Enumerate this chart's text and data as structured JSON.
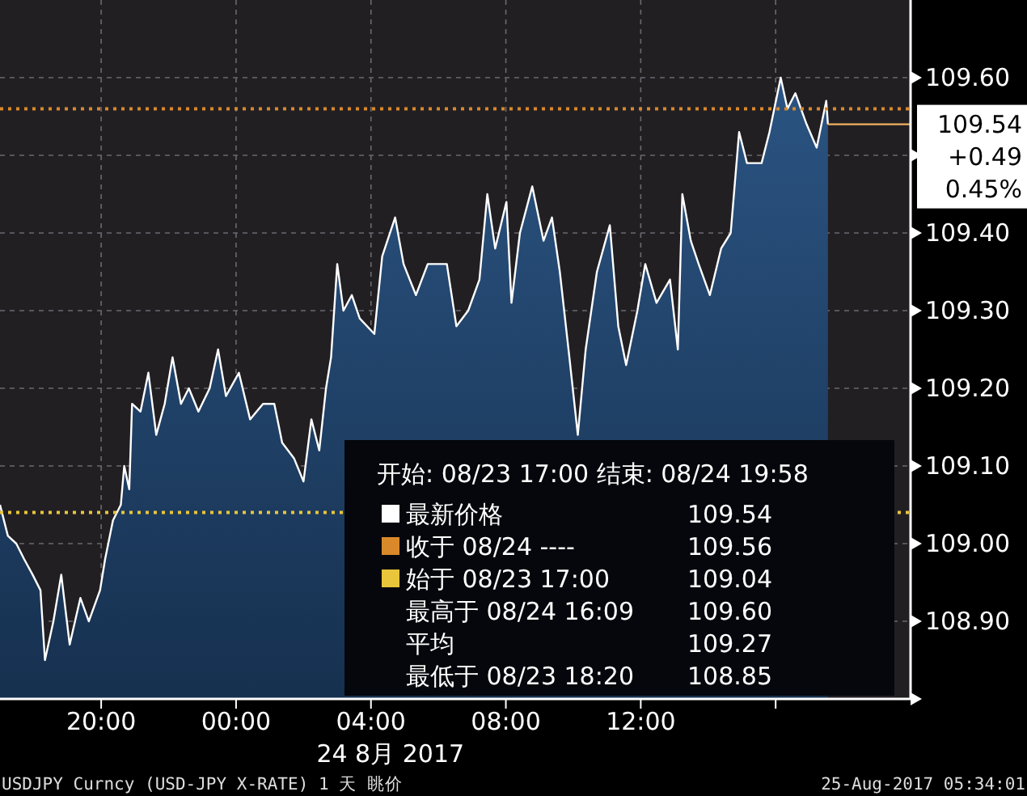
{
  "chart_data": {
    "type": "area",
    "xlabel": "24 8月 2017",
    "x": [
      "2017-08-23T17:00",
      "2017-08-23T17:14",
      "2017-08-23T17:29",
      "2017-08-23T17:43",
      "2017-08-23T17:58",
      "2017-08-23T18:12",
      "2017-08-23T18:20",
      "2017-08-23T18:35",
      "2017-08-23T18:49",
      "2017-08-23T19:04",
      "2017-08-23T19:23",
      "2017-08-23T19:38",
      "2017-08-23T19:58",
      "2017-08-23T20:07",
      "2017-08-23T20:21",
      "2017-08-23T20:35",
      "2017-08-23T20:41",
      "2017-08-23T20:50",
      "2017-08-23T20:55",
      "2017-08-23T21:10",
      "2017-08-23T21:24",
      "2017-08-23T21:38",
      "2017-08-23T21:53",
      "2017-08-23T22:07",
      "2017-08-23T22:22",
      "2017-08-23T22:36",
      "2017-08-23T22:53",
      "2017-08-23T23:13",
      "2017-08-23T23:28",
      "2017-08-23T23:42",
      "2017-08-24T00:05",
      "2017-08-24T00:25",
      "2017-08-24T00:48",
      "2017-08-24T01:08",
      "2017-08-24T01:22",
      "2017-08-24T01:43",
      "2017-08-24T02:00",
      "2017-08-24T02:14",
      "2017-08-24T02:28",
      "2017-08-24T02:40",
      "2017-08-24T02:49",
      "2017-08-24T03:00",
      "2017-08-24T03:11",
      "2017-08-24T03:26",
      "2017-08-24T03:40",
      "2017-08-24T04:06",
      "2017-08-24T04:20",
      "2017-08-24T04:43",
      "2017-08-24T04:58",
      "2017-08-24T05:20",
      "2017-08-24T05:41",
      "2017-08-24T06:15",
      "2017-08-24T06:32",
      "2017-08-24T06:53",
      "2017-08-24T07:13",
      "2017-08-24T07:27",
      "2017-08-24T07:41",
      "2017-08-24T08:01",
      "2017-08-24T08:10",
      "2017-08-24T08:25",
      "2017-08-24T08:47",
      "2017-08-24T09:07",
      "2017-08-24T09:22",
      "2017-08-24T09:36",
      "2017-08-24T09:53",
      "2017-08-24T10:08",
      "2017-08-24T10:22",
      "2017-08-24T10:42",
      "2017-08-24T11:05",
      "2017-08-24T11:20",
      "2017-08-24T11:34",
      "2017-08-24T11:54",
      "2017-08-24T12:08",
      "2017-08-24T12:28",
      "2017-08-24T12:52",
      "2017-08-24T13:06",
      "2017-08-24T13:14",
      "2017-08-24T13:29",
      "2017-08-24T13:43",
      "2017-08-24T14:03",
      "2017-08-24T14:23",
      "2017-08-24T14:40",
      "2017-08-24T14:55",
      "2017-08-24T15:09",
      "2017-08-24T15:35",
      "2017-08-24T15:49",
      "2017-08-24T16:09",
      "2017-08-24T16:21",
      "2017-08-24T16:35",
      "2017-08-24T16:55",
      "2017-08-24T17:13",
      "2017-08-24T17:30",
      "2017-08-24T17:33"
    ],
    "series": [
      {
        "color": "#ffffff",
        "values": [
          109.05,
          109.01,
          109.0,
          108.98,
          108.96,
          108.94,
          108.85,
          108.9,
          108.96,
          108.87,
          108.93,
          108.9,
          108.94,
          108.98,
          109.03,
          109.05,
          109.1,
          109.07,
          109.18,
          109.17,
          109.22,
          109.14,
          109.18,
          109.24,
          109.18,
          109.2,
          109.17,
          109.2,
          109.25,
          109.19,
          109.22,
          109.16,
          109.18,
          109.18,
          109.13,
          109.11,
          109.08,
          109.16,
          109.12,
          109.2,
          109.24,
          109.36,
          109.3,
          109.32,
          109.29,
          109.27,
          109.37,
          109.42,
          109.36,
          109.32,
          109.36,
          109.36,
          109.28,
          109.3,
          109.34,
          109.45,
          109.38,
          109.44,
          109.31,
          109.4,
          109.46,
          109.39,
          109.42,
          109.35,
          109.24,
          109.14,
          109.25,
          109.35,
          109.41,
          109.28,
          109.23,
          109.3,
          109.36,
          109.31,
          109.34,
          109.25,
          109.45,
          109.39,
          109.36,
          109.32,
          109.38,
          109.4,
          109.53,
          109.49,
          109.49,
          109.53,
          109.6,
          109.56,
          109.58,
          109.54,
          109.51,
          109.57,
          109.54
        ]
      }
    ],
    "xlim": [
      "2017-08-23T17:00",
      "2017-08-24T20:00"
    ],
    "ylim": [
      108.8,
      109.7
    ],
    "xticks": [
      {
        "value": "2017-08-23T20:00",
        "label": "20:00"
      },
      {
        "value": "2017-08-24T00:00",
        "label": "00:00"
      },
      {
        "value": "2017-08-24T04:00",
        "label": "04:00"
      },
      {
        "value": "2017-08-24T08:00",
        "label": "08:00"
      },
      {
        "value": "2017-08-24T12:00",
        "label": "12:00"
      },
      {
        "value": "2017-08-24T16:00",
        "label": null
      }
    ],
    "yticks": [
      {
        "value": 108.8,
        "label": null
      },
      {
        "value": 108.9,
        "label": "108.90"
      },
      {
        "value": 109.0,
        "label": "109.00"
      },
      {
        "value": 109.1,
        "label": "109.10"
      },
      {
        "value": 109.2,
        "label": "109.20"
      },
      {
        "value": 109.3,
        "label": "109.30"
      },
      {
        "value": 109.4,
        "label": "109.40"
      },
      {
        "value": 109.5,
        "label": null
      },
      {
        "value": 109.6,
        "label": "109.60"
      }
    ],
    "grid": true,
    "ref_lines": [
      {
        "axis": "y",
        "value": 109.04,
        "color": "#e8c53a",
        "line_style": "dotted"
      },
      {
        "axis": "y",
        "value": 109.56,
        "color": "#d9892a",
        "line_style": "dotted"
      },
      {
        "axis": "y",
        "value": 109.54,
        "label": "109.54",
        "color": "#f0b060",
        "line_style": "solid"
      }
    ],
    "annotations": [
      "+0.49",
      "0.45%",
      "开始: 08/23 17:00 结束: 08/24 19:58",
      "最新价格",
      "109.54",
      "收于 08/24 ----",
      "109.56",
      "始于 08/23 17:00",
      "109.04",
      "最高于 08/24 16:09",
      "109.60",
      "平均",
      "109.27",
      "最低于 08/23 18:20",
      "108.85",
      "USDJPY Curncy (USD-JPY X-RATE) 1 天  眺价",
      "25-Aug-2017 05:34:01"
    ]
  }
}
